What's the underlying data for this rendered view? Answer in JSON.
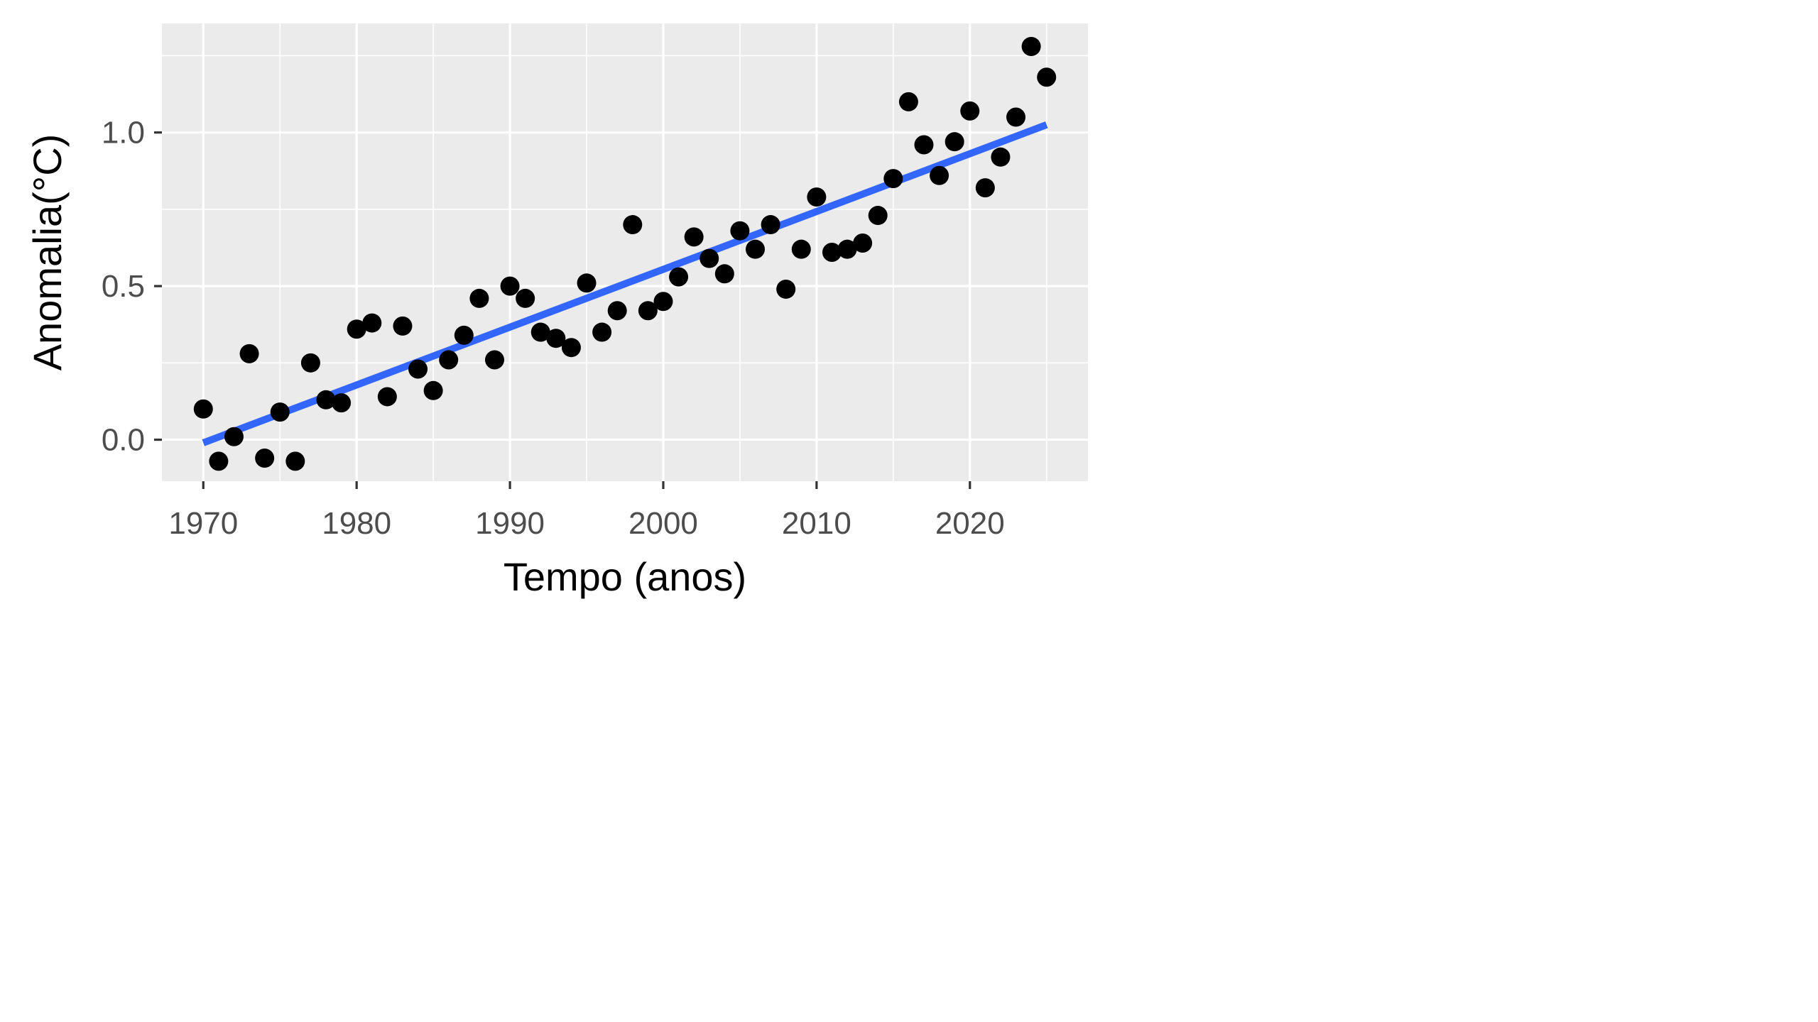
{
  "chart_data": {
    "type": "scatter",
    "title": "",
    "xlabel": "Tempo (anos)",
    "ylabel": "Anomalia(°C)",
    "xlim": [
      1967.3,
      2027.7
    ],
    "ylim": [
      -0.135,
      1.355
    ],
    "x_ticks": [
      1970,
      1980,
      1990,
      2000,
      2010,
      2020
    ],
    "x_tick_labels": [
      "1970",
      "1980",
      "1990",
      "2000",
      "2010",
      "2020"
    ],
    "y_ticks": [
      0,
      0.5,
      1
    ],
    "y_tick_labels": [
      "0.0",
      "0.5",
      "1.0"
    ],
    "grid": true,
    "legend": "none",
    "colors": {
      "panel_background": "#ebebeb",
      "grid": "#ffffff",
      "points": "#000000",
      "trend_line": "#3366ff"
    },
    "series": [
      {
        "kind": "points",
        "x": [
          1970,
          1971,
          1972,
          1973,
          1974,
          1975,
          1976,
          1977,
          1978,
          1979,
          1980,
          1981,
          1982,
          1983,
          1984,
          1985,
          1986,
          1987,
          1988,
          1989,
          1990,
          1991,
          1992,
          1993,
          1994,
          1995,
          1996,
          1997,
          1998,
          1999,
          2000,
          2001,
          2002,
          2003,
          2004,
          2005,
          2006,
          2007,
          2008,
          2009,
          2010,
          2011,
          2012,
          2013,
          2014,
          2015,
          2016,
          2017,
          2018,
          2019,
          2020,
          2021,
          2022,
          2023,
          2024,
          2025
        ],
        "y": [
          0.1,
          -0.07,
          0.01,
          0.28,
          -0.06,
          0.09,
          -0.07,
          0.25,
          0.13,
          0.12,
          0.36,
          0.38,
          0.14,
          0.37,
          0.23,
          0.16,
          0.26,
          0.34,
          0.46,
          0.26,
          0.5,
          0.46,
          0.35,
          0.33,
          0.3,
          0.51,
          0.35,
          0.42,
          0.7,
          0.42,
          0.45,
          0.53,
          0.66,
          0.59,
          0.54,
          0.68,
          0.62,
          0.7,
          0.49,
          0.62,
          0.79,
          0.61,
          0.62,
          0.64,
          0.73,
          0.85,
          1.1,
          0.96,
          0.86,
          0.97,
          1.07,
          0.82,
          0.92,
          1.05,
          1.28,
          1.18
        ]
      },
      {
        "kind": "trend_line",
        "x": [
          1970,
          2025
        ],
        "y": [
          -0.01,
          1.025
        ]
      }
    ]
  }
}
